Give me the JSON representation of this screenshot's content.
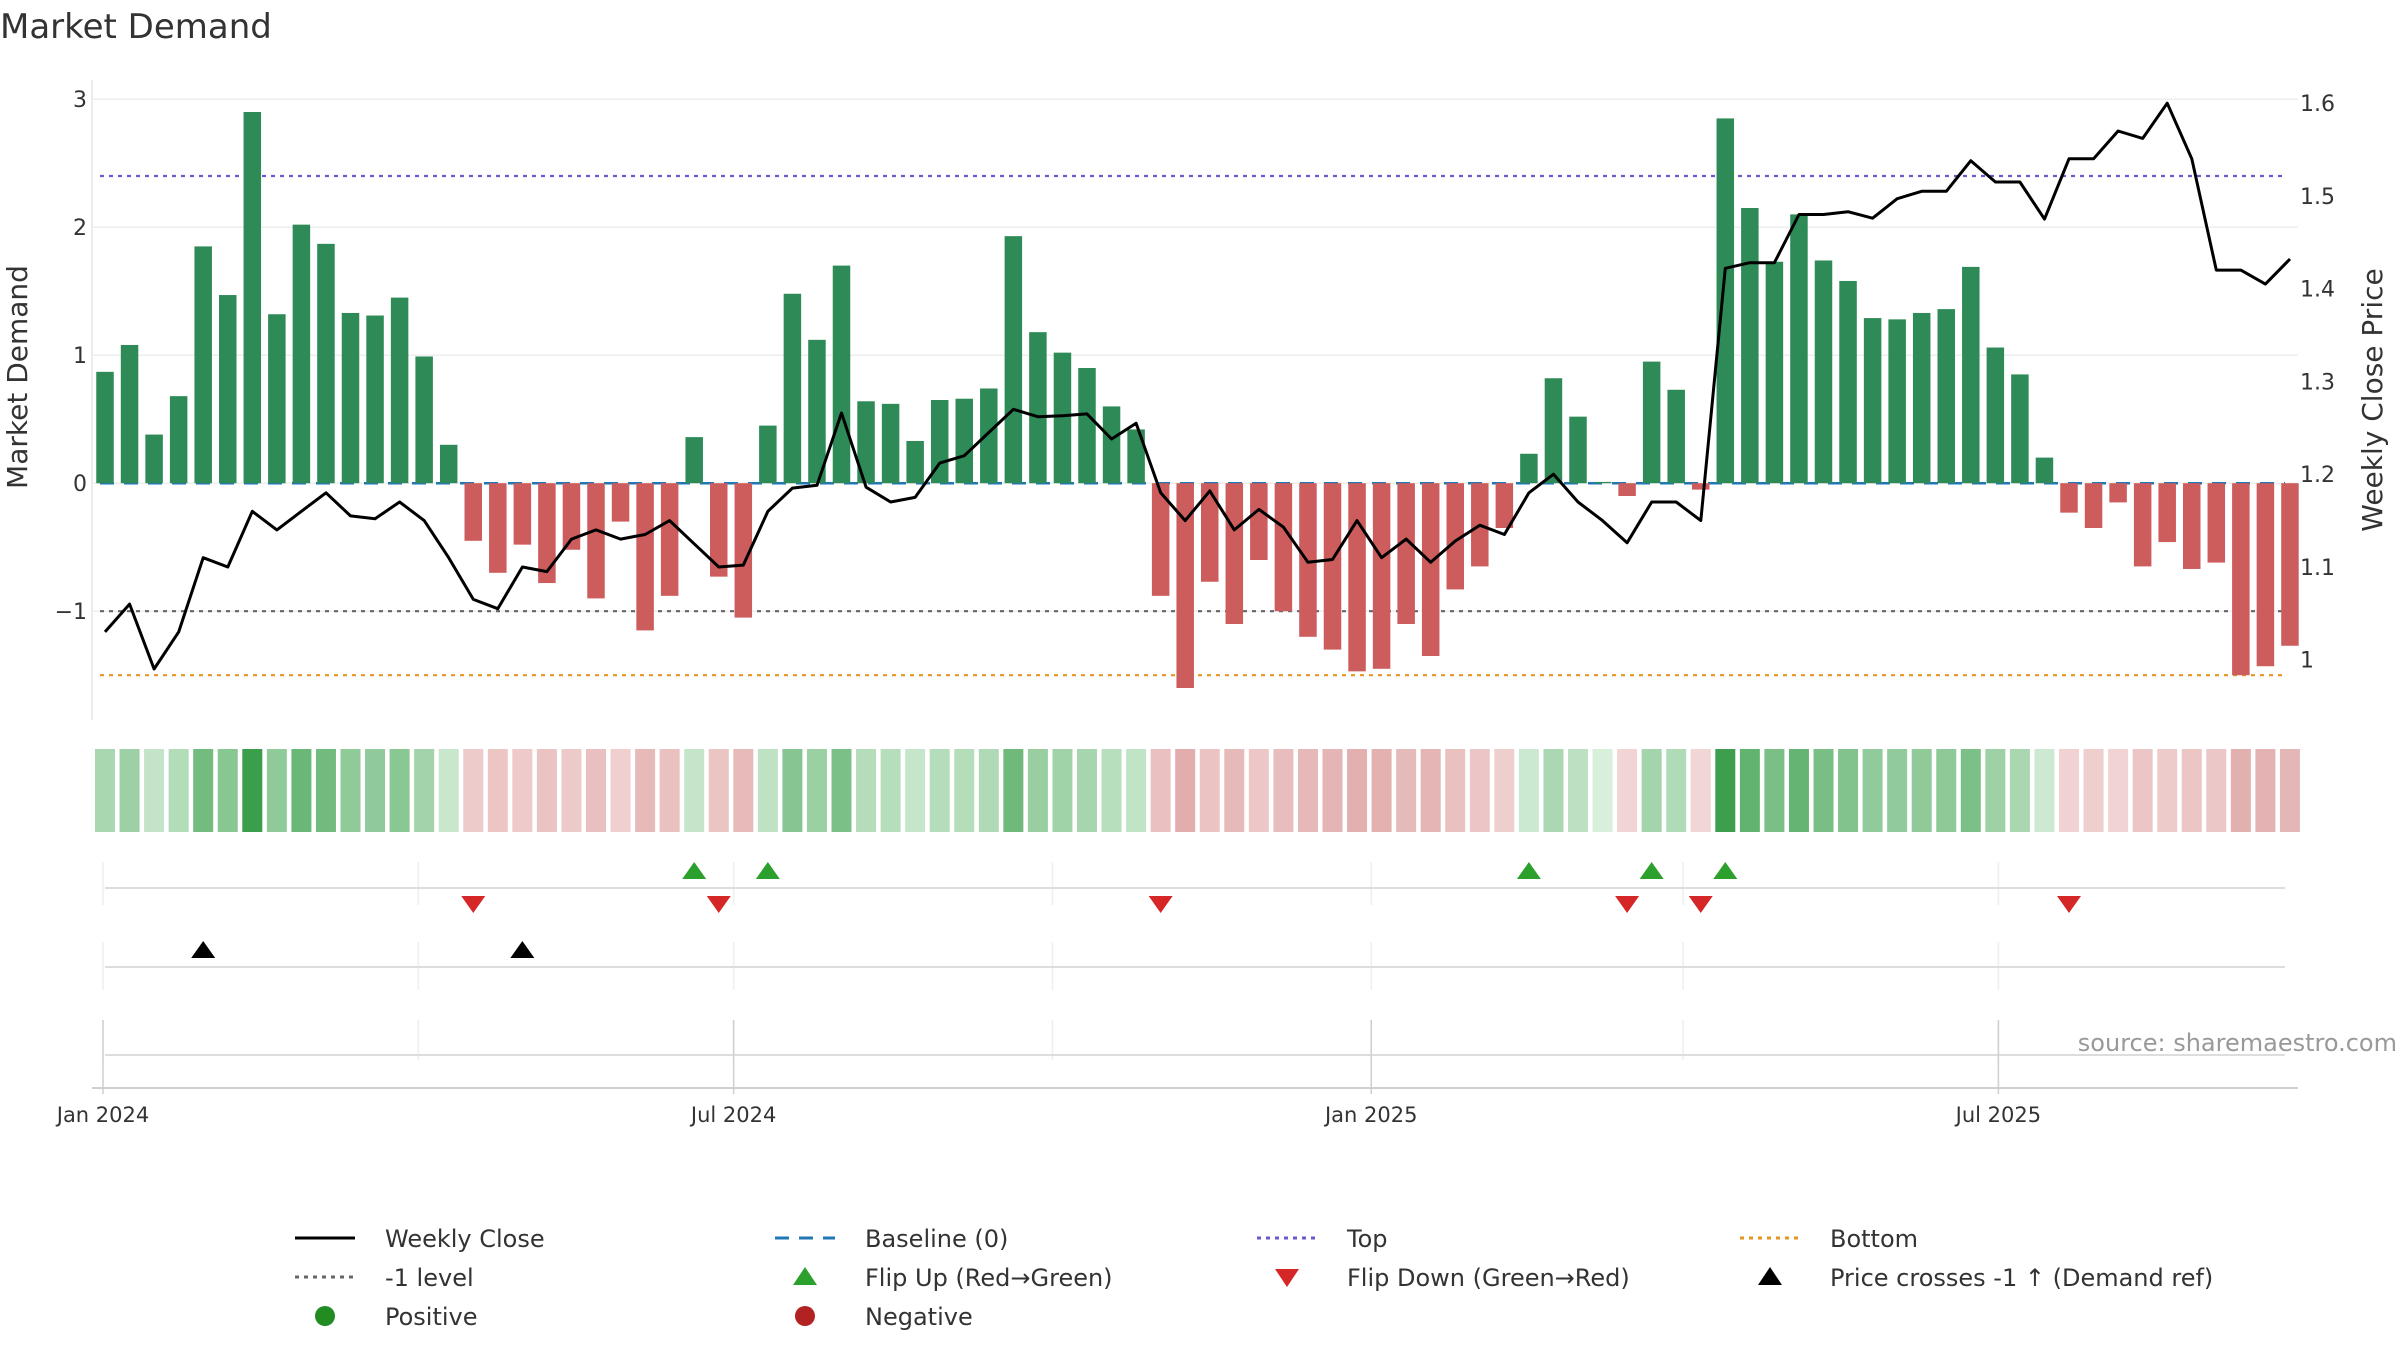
{
  "chart_data": {
    "type": "bar",
    "title": "Market Demand",
    "ylabel_left": "Market Demand",
    "ylabel_right": "Weekly Close Price",
    "ylim_left": [
      -1.85,
      3.15
    ],
    "ylim_right": [
      0.935,
      1.625
    ],
    "yticks_left": [
      3,
      2,
      1,
      0,
      -1
    ],
    "yticks_left_labels": [
      "3",
      "2",
      "1",
      "0",
      "−1"
    ],
    "yticks_right": [
      1.6,
      1.5,
      1.4,
      1.3,
      1.2,
      1.1,
      1.0
    ],
    "yticks_right_labels": [
      "1.6",
      "1.5",
      "1.4",
      "1.3",
      "1.2",
      "1.1",
      "1"
    ],
    "start_date": "2024-01-01",
    "end_date": "2025-09-22",
    "x_tick_dates": [
      "2024-01-01",
      "2024-07-01",
      "2025-01-01",
      "2025-07-01"
    ],
    "x_tick_labels": [
      "Jan 2024",
      "Jul 2024",
      "Jan 2025",
      "Jul 2025"
    ],
    "minor_grid_dates": [
      "2024-04-01",
      "2024-10-01",
      "2025-04-01"
    ],
    "reference_lines": {
      "top": 2.4,
      "level_neg1": -1,
      "bottom": -1.5,
      "baseline": 0
    },
    "colors": {
      "positive": "#2e8b57",
      "negative": "#cd5c5c",
      "price_line": "#000000",
      "top": "#6a5acd",
      "bottom": "#e69522",
      "level": "#666666",
      "baseline": "#1f77b4",
      "flip_up": "#2ca02c",
      "flip_down": "#d62728",
      "cross": "#000000",
      "legend_positive": "#228b22",
      "legend_negative": "#b22222"
    },
    "series": [
      {
        "name": "Market Demand",
        "values": [
          0.87,
          1.08,
          0.38,
          0.68,
          1.85,
          1.47,
          2.9,
          1.32,
          2.02,
          1.87,
          1.33,
          1.31,
          1.45,
          0.99,
          0.3,
          -0.45,
          -0.7,
          -0.48,
          -0.78,
          -0.52,
          -0.9,
          -0.3,
          -1.15,
          -0.88,
          0.36,
          -0.73,
          -1.05,
          0.45,
          1.48,
          1.12,
          1.7,
          0.64,
          0.62,
          0.33,
          0.65,
          0.66,
          0.74,
          1.93,
          1.18,
          1.02,
          0.9,
          0.6,
          0.42,
          -0.88,
          -1.6,
          -0.77,
          -1.1,
          -0.6,
          -1.0,
          -1.2,
          -1.3,
          -1.47,
          -1.45,
          -1.1,
          -1.35,
          -0.83,
          -0.65,
          -0.35,
          0.23,
          0.82,
          0.52,
          0.01,
          -0.1,
          0.95,
          0.73,
          -0.05,
          2.85,
          2.15,
          1.73,
          2.1,
          1.74,
          1.58,
          1.29,
          1.28,
          1.33,
          1.36,
          1.69,
          1.06,
          0.85,
          0.2,
          -0.23,
          -0.35,
          -0.15,
          -0.65,
          -0.46,
          -0.67,
          -0.62,
          -1.5,
          -1.43,
          -1.27
        ]
      },
      {
        "name": "Weekly Close",
        "values": [
          1.03,
          1.06,
          0.99,
          1.03,
          1.11,
          1.1,
          1.16,
          1.14,
          1.16,
          1.18,
          1.155,
          1.152,
          1.17,
          1.15,
          1.11,
          1.065,
          1.055,
          1.1,
          1.095,
          1.13,
          1.14,
          1.13,
          1.135,
          1.15,
          1.125,
          1.1,
          1.102,
          1.16,
          1.185,
          1.188,
          1.266,
          1.186,
          1.17,
          1.175,
          1.212,
          1.22,
          1.245,
          1.27,
          1.262,
          1.263,
          1.265,
          1.238,
          1.255,
          1.18,
          1.15,
          1.182,
          1.14,
          1.162,
          1.143,
          1.105,
          1.108,
          1.15,
          1.11,
          1.13,
          1.105,
          1.128,
          1.145,
          1.135,
          1.18,
          1.2,
          1.17,
          1.15,
          1.126,
          1.17,
          1.17,
          1.15,
          1.422,
          1.428,
          1.428,
          1.48,
          1.48,
          1.483,
          1.476,
          1.497,
          1.505,
          1.505,
          1.538,
          1.515,
          1.515,
          1.475,
          1.54,
          1.54,
          1.57,
          1.562,
          1.6,
          1.54,
          1.42,
          1.42,
          1.405,
          1.432
        ]
      }
    ],
    "flip_up_indices": [
      24,
      27,
      58,
      63,
      66
    ],
    "flip_down_indices": [
      15,
      25,
      43,
      62,
      65,
      80
    ],
    "price_cross_indices": [
      4,
      17
    ],
    "legend": [
      {
        "label": "Weekly Close",
        "symbol": "line-solid",
        "color": "#000000"
      },
      {
        "label": "Baseline (0)",
        "symbol": "line-dashed",
        "color": "#1f77b4"
      },
      {
        "label": "Top",
        "symbol": "line-dotted",
        "color": "#6a5acd"
      },
      {
        "label": "Bottom",
        "symbol": "line-dotted",
        "color": "#e69522"
      },
      {
        "label": "-1 level",
        "symbol": "line-dotted",
        "color": "#666666"
      },
      {
        "label": "Flip Up (Red→Green)",
        "symbol": "triangle-up",
        "color": "#2ca02c"
      },
      {
        "label": "Flip Down (Green→Red)",
        "symbol": "triangle-down",
        "color": "#d62728"
      },
      {
        "label": "Price crosses -1 ↑ (Demand ref)",
        "symbol": "triangle-up",
        "color": "#000000"
      },
      {
        "label": "Positive",
        "symbol": "circle",
        "color": "#228b22"
      },
      {
        "label": "Negative",
        "symbol": "circle",
        "color": "#b22222"
      }
    ],
    "source": "source: sharemaestro.com"
  }
}
